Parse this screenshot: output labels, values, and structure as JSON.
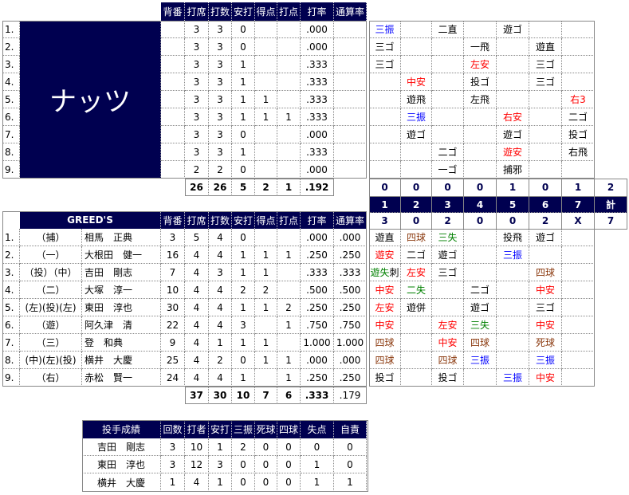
{
  "colors": {
    "hit": "#ff0000",
    "strikeout": "#0000ff",
    "error": "#008000",
    "walk": "#8b3a0f",
    "out": "#000000",
    "navy": "#000050"
  },
  "stat_headers": [
    "背番",
    "打席",
    "打数",
    "安打",
    "得点",
    "打点",
    "打率",
    "通算率"
  ],
  "away": {
    "name": "ナッツ",
    "rows": [
      {
        "no": "1.",
        "stats": [
          "",
          "3",
          "3",
          "0",
          "",
          "",
          ".000",
          ""
        ]
      },
      {
        "no": "2.",
        "stats": [
          "",
          "3",
          "3",
          "0",
          "",
          "",
          ".000",
          ""
        ]
      },
      {
        "no": "3.",
        "stats": [
          "",
          "3",
          "3",
          "1",
          "",
          "",
          ".333",
          ""
        ]
      },
      {
        "no": "4.",
        "stats": [
          "",
          "3",
          "3",
          "1",
          "",
          "",
          ".333",
          ""
        ]
      },
      {
        "no": "5.",
        "stats": [
          "",
          "3",
          "3",
          "1",
          "1",
          "",
          ".333",
          ""
        ]
      },
      {
        "no": "6.",
        "stats": [
          "",
          "3",
          "3",
          "1",
          "1",
          "1",
          ".333",
          ""
        ]
      },
      {
        "no": "7.",
        "stats": [
          "",
          "3",
          "3",
          "0",
          "",
          "",
          ".000",
          ""
        ]
      },
      {
        "no": "8.",
        "stats": [
          "",
          "3",
          "3",
          "1",
          "",
          "",
          ".333",
          ""
        ]
      },
      {
        "no": "9.",
        "stats": [
          "",
          "2",
          "2",
          "0",
          "",
          "",
          ".000",
          ""
        ]
      }
    ],
    "totals": [
      "26",
      "26",
      "5",
      "2",
      "1",
      ".192"
    ],
    "plays": [
      [
        {
          "text": "三振",
          "type": "strikeout"
        },
        null,
        {
          "text": "二直",
          "type": "out"
        },
        null,
        {
          "text": "遊ゴ",
          "type": "out"
        },
        null,
        null
      ],
      [
        {
          "text": "三ゴ",
          "type": "out"
        },
        null,
        null,
        {
          "text": "一飛",
          "type": "out"
        },
        null,
        {
          "text": "遊直",
          "type": "out"
        },
        null
      ],
      [
        {
          "text": "三ゴ",
          "type": "out"
        },
        null,
        null,
        {
          "text": "左安",
          "type": "hit"
        },
        null,
        {
          "text": "三ゴ",
          "type": "out"
        },
        null
      ],
      [
        null,
        {
          "text": "中安",
          "type": "hit"
        },
        null,
        {
          "text": "投ゴ",
          "type": "out"
        },
        null,
        {
          "text": "三ゴ",
          "type": "out"
        },
        null
      ],
      [
        null,
        {
          "text": "遊飛",
          "type": "out"
        },
        null,
        {
          "text": "左飛",
          "type": "out"
        },
        null,
        null,
        {
          "text": "右3",
          "type": "hit"
        }
      ],
      [
        null,
        {
          "text": "三振",
          "type": "strikeout"
        },
        null,
        null,
        {
          "text": "右安",
          "type": "hit"
        },
        null,
        {
          "text": "二ゴ",
          "type": "out"
        }
      ],
      [
        null,
        {
          "text": "遊ゴ",
          "type": "out"
        },
        null,
        null,
        {
          "text": "遊ゴ",
          "type": "out"
        },
        null,
        {
          "text": "投ゴ",
          "type": "out"
        }
      ],
      [
        null,
        null,
        {
          "text": "二ゴ",
          "type": "out"
        },
        null,
        {
          "text": "遊安",
          "type": "hit"
        },
        null,
        {
          "text": "右飛",
          "type": "out"
        }
      ],
      [
        null,
        null,
        {
          "text": "一ゴ",
          "type": "out"
        },
        null,
        {
          "text": "捕邪",
          "type": "out"
        },
        null,
        null
      ]
    ]
  },
  "linescore": {
    "innings": [
      "1",
      "2",
      "3",
      "4",
      "5",
      "6",
      "7",
      "計"
    ],
    "away": [
      "0",
      "0",
      "0",
      "0",
      "1",
      "0",
      "1",
      "2"
    ],
    "home": [
      "3",
      "0",
      "2",
      "0",
      "0",
      "2",
      "X",
      "7"
    ]
  },
  "home": {
    "name": "GREED'S",
    "rows": [
      {
        "no": "1.",
        "pos": "（捕）",
        "name": "相馬　正典",
        "stats": [
          "3",
          "5",
          "4",
          "0",
          "",
          "",
          ".000",
          ".000"
        ]
      },
      {
        "no": "2.",
        "pos": "（一）",
        "name": "大根田　健一",
        "stats": [
          "16",
          "4",
          "4",
          "1",
          "1",
          "1",
          ".250",
          ".250"
        ]
      },
      {
        "no": "3.",
        "pos": "（投）（中）",
        "name": "吉田　剛志",
        "stats": [
          "7",
          "4",
          "3",
          "1",
          "1",
          "",
          ".333",
          ".333"
        ]
      },
      {
        "no": "4.",
        "pos": "（二）",
        "name": "大塚　淳一",
        "stats": [
          "10",
          "4",
          "4",
          "2",
          "2",
          "",
          ".500",
          ".500"
        ]
      },
      {
        "no": "5.",
        "pos": "(左)(投)(左)",
        "name": "東田　淳也",
        "stats": [
          "30",
          "4",
          "4",
          "1",
          "1",
          "2",
          ".250",
          ".250"
        ]
      },
      {
        "no": "6.",
        "pos": "（遊）",
        "name": "阿久津　清",
        "stats": [
          "22",
          "4",
          "4",
          "3",
          "",
          "1",
          ".750",
          ".750"
        ]
      },
      {
        "no": "7.",
        "pos": "（三）",
        "name": "登　和典",
        "stats": [
          "9",
          "4",
          "1",
          "1",
          "1",
          "",
          "1.000",
          "1.000"
        ]
      },
      {
        "no": "8.",
        "pos": "(中)(左)(投)",
        "name": "横井　大慶",
        "stats": [
          "25",
          "4",
          "2",
          "0",
          "1",
          "1",
          ".000",
          ".000"
        ]
      },
      {
        "no": "9.",
        "pos": "（右）",
        "name": "赤松　賢一",
        "stats": [
          "24",
          "4",
          "4",
          "1",
          "",
          "1",
          ".250",
          ".250"
        ]
      }
    ],
    "totals": [
      "37",
      "30",
      "10",
      "7",
      "6",
      ".333",
      ".179"
    ],
    "plays": [
      [
        {
          "text": "遊直",
          "type": "out"
        },
        {
          "text": "四球",
          "type": "walk"
        },
        {
          "text": "三失",
          "type": "error"
        },
        null,
        {
          "text": "投飛",
          "type": "out"
        },
        {
          "text": "遊ゴ",
          "type": "out"
        },
        null
      ],
      [
        {
          "text": "遊安",
          "type": "hit"
        },
        {
          "text": "二ゴ",
          "type": "out"
        },
        {
          "text": "遊ゴ",
          "type": "out"
        },
        null,
        {
          "text": "三振",
          "type": "strikeout"
        },
        null,
        null
      ],
      [
        {
          "text": "遊失",
          "type": "error",
          "extra": "刺"
        },
        {
          "text": "左安",
          "type": "hit"
        },
        {
          "text": "三ゴ",
          "type": "out"
        },
        null,
        null,
        {
          "text": "四球",
          "type": "walk"
        },
        null
      ],
      [
        {
          "text": "中安",
          "type": "hit"
        },
        {
          "text": "二失",
          "type": "error"
        },
        null,
        {
          "text": "二ゴ",
          "type": "out"
        },
        null,
        {
          "text": "中安",
          "type": "hit"
        },
        null
      ],
      [
        {
          "text": "左安",
          "type": "hit"
        },
        {
          "text": "遊併",
          "type": "out"
        },
        null,
        {
          "text": "遊ゴ",
          "type": "out"
        },
        null,
        {
          "text": "三ゴ",
          "type": "out"
        },
        null
      ],
      [
        {
          "text": "中安",
          "type": "hit"
        },
        null,
        {
          "text": "左安",
          "type": "hit"
        },
        {
          "text": "三失",
          "type": "error"
        },
        null,
        {
          "text": "中安",
          "type": "hit"
        },
        null
      ],
      [
        {
          "text": "四球",
          "type": "walk"
        },
        null,
        {
          "text": "中安",
          "type": "hit"
        },
        {
          "text": "四球",
          "type": "walk"
        },
        null,
        {
          "text": "死球",
          "type": "walk"
        },
        null
      ],
      [
        {
          "text": "四球",
          "type": "walk"
        },
        null,
        {
          "text": "四球",
          "type": "walk"
        },
        {
          "text": "三振",
          "type": "strikeout"
        },
        null,
        {
          "text": "三振",
          "type": "strikeout"
        },
        null
      ],
      [
        {
          "text": "投ゴ",
          "type": "out"
        },
        null,
        {
          "text": "投ゴ",
          "type": "out"
        },
        null,
        {
          "text": "三振",
          "type": "strikeout"
        },
        {
          "text": "中安",
          "type": "hit"
        },
        null
      ]
    ]
  },
  "pitching": {
    "title": "投手成績",
    "headers": [
      "回数",
      "打者",
      "安打",
      "三振",
      "死球",
      "四球",
      "失点",
      "自責"
    ],
    "rows": [
      {
        "name": "吉田　剛志",
        "stats": [
          "3",
          "10",
          "1",
          "2",
          "0",
          "0",
          "0",
          "0"
        ]
      },
      {
        "name": "東田　淳也",
        "stats": [
          "3",
          "12",
          "3",
          "0",
          "0",
          "0",
          "1",
          "0"
        ]
      },
      {
        "name": "横井　大慶",
        "stats": [
          "1",
          "4",
          "1",
          "0",
          "0",
          "0",
          "1",
          "1"
        ]
      }
    ]
  }
}
